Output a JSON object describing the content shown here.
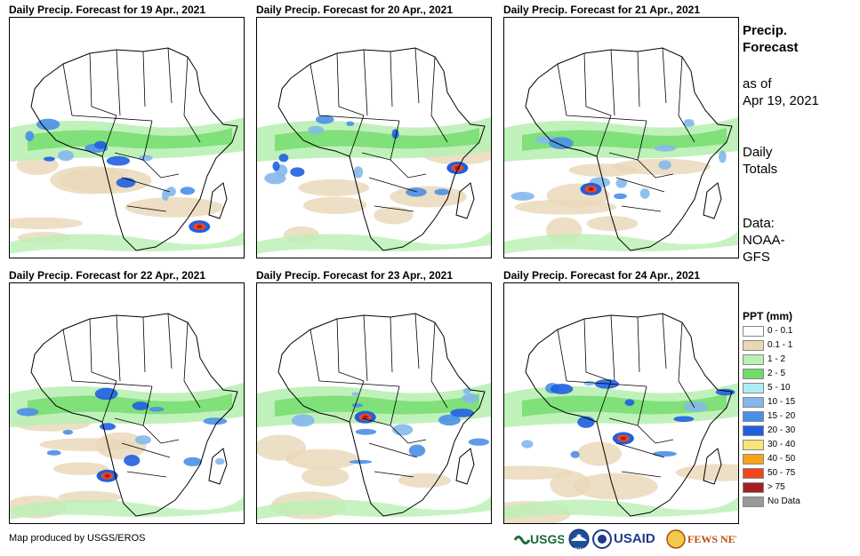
{
  "panels": [
    {
      "title": "Daily Precip. Forecast for 19 Apr., 2021"
    },
    {
      "title": "Daily Precip. Forecast for 20 Apr., 2021"
    },
    {
      "title": "Daily Precip. Forecast for 21 Apr., 2021"
    },
    {
      "title": "Daily Precip. Forecast for 22 Apr., 2021"
    },
    {
      "title": "Daily Precip. Forecast for 23 Apr., 2021"
    },
    {
      "title": "Daily Precip. Forecast for 24 Apr., 2021"
    }
  ],
  "sidebar": {
    "title_line1": "Precip.",
    "title_line2": "Forecast",
    "asof_line1": "as of",
    "asof_line2": "Apr 19, 2021",
    "daily_line1": "Daily",
    "daily_line2": "Totals",
    "data_line1": "Data:",
    "data_line2": "NOAA-",
    "data_line3": "GFS"
  },
  "legend": {
    "title": "PPT (mm)",
    "items": [
      {
        "label": "0 - 0.1",
        "color": "#ffffff"
      },
      {
        "label": "0.1 - 1",
        "color": "#e9d7b6"
      },
      {
        "label": "1 - 2",
        "color": "#b9f0b4"
      },
      {
        "label": "2 - 5",
        "color": "#6fdc6a"
      },
      {
        "label": "5 - 10",
        "color": "#aeeef2"
      },
      {
        "label": "10 - 15",
        "color": "#84b8ec"
      },
      {
        "label": "15 - 20",
        "color": "#4a8fe6"
      },
      {
        "label": "20 - 30",
        "color": "#1f5fe0"
      },
      {
        "label": "30 - 40",
        "color": "#fbe37a"
      },
      {
        "label": "40 - 50",
        "color": "#f6a31a"
      },
      {
        "label": "50 - 75",
        "color": "#f0461a"
      },
      {
        "label": "> 75",
        "color": "#a31f1f"
      },
      {
        "label": "No Data",
        "color": "#999999"
      }
    ]
  },
  "footer": {
    "credit": "Map produced by USGS/EROS"
  },
  "logos": {
    "usgs": "USGS",
    "noaa": "NOAA",
    "usaid": "USAID",
    "fewsnet": "FEWS NET"
  }
}
